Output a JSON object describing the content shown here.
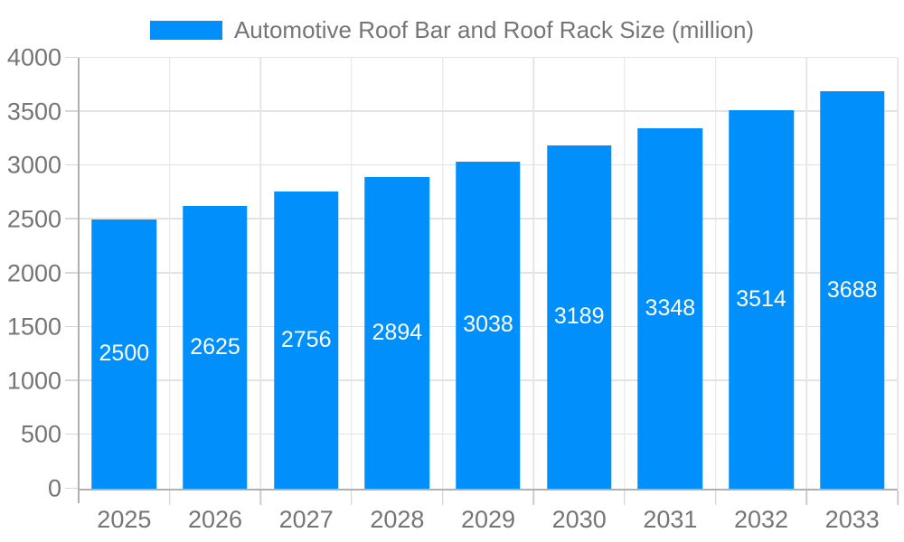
{
  "legend": {
    "label": "Automotive Roof Bar and Roof Rack Size (million)"
  },
  "chart_data": {
    "type": "bar",
    "title": "Automotive Roof Bar and Roof Rack Size (million)",
    "series_name": "Automotive Roof Bar and Roof Rack Size (million)",
    "categories": [
      "2025",
      "2026",
      "2027",
      "2028",
      "2029",
      "2030",
      "2031",
      "2032",
      "2033"
    ],
    "values": [
      2500,
      2625,
      2756,
      2894,
      3038,
      3189,
      3348,
      3514,
      3688
    ],
    "xlabel": "",
    "ylabel": "",
    "ylim": [
      0,
      4000
    ],
    "yticks": [
      0,
      500,
      1000,
      1500,
      2000,
      2500,
      3000,
      3500,
      4000
    ],
    "grid": true,
    "legend_position": "top",
    "bar_color": "#008ffb",
    "value_label_color": "#ffffff",
    "axis_text_color": "#757575"
  }
}
